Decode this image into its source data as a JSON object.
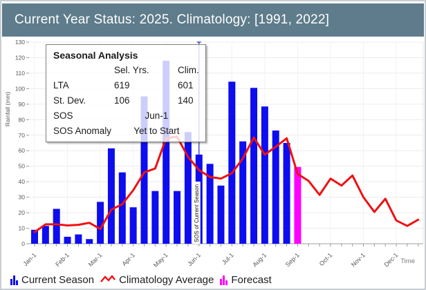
{
  "header": {
    "title": "Current Year Status: 2025. Climatology: [1991, 2022]"
  },
  "seasonal_analysis": {
    "title": "Seasonal Analysis",
    "col_sel": "Sel. Yrs.",
    "col_clim": "Clim.",
    "lta_label": "LTA",
    "lta_sel": "619",
    "lta_clim": "601",
    "stdev_label": "St. Dev.",
    "stdev_sel": "106",
    "stdev_clim": "140",
    "sos_label": "SOS",
    "sos_value": "Jun-1",
    "sos_anomaly_label": "SOS Anomaly",
    "sos_anomaly_value": "Yet to Start"
  },
  "legend": {
    "items": [
      {
        "icon": "blue-bars-icon",
        "label": "Current Season"
      },
      {
        "icon": "red-line-icon",
        "label": "Climatology Average"
      },
      {
        "icon": "magenta-bars-icon",
        "label": "Forecast"
      }
    ]
  },
  "colors": {
    "header_bg": "#5e7c8b",
    "current_season": "#0d0df0",
    "forecast": "#ff00ff",
    "climatology": "#ee1111",
    "axis_text": "#555555",
    "grid": "#ececf0",
    "baseline": "#9aa0a6",
    "sos_line": "#2323c8"
  },
  "chart_data": {
    "type": "bar+line",
    "ylabel": "Rainfall (mm)",
    "xlabel": "Time",
    "ylim": [
      0,
      130
    ],
    "y_tick_step": 10,
    "grid": true,
    "legend_position": "bottom",
    "categories": [
      "Jan-1",
      "Jan-11",
      "Jan-21",
      "Feb-1",
      "Feb-11",
      "Feb-21",
      "Mar-1",
      "Mar-11",
      "Mar-21",
      "Apr-1",
      "Apr-11",
      "Apr-21",
      "May-1",
      "May-11",
      "May-21",
      "Jun-1",
      "Jun-11",
      "Jun-21",
      "Jul-1",
      "Jul-11",
      "Jul-21",
      "Aug-1",
      "Aug-11",
      "Aug-21",
      "Sep-1",
      "Sep-11",
      "Sep-21",
      "Oct-1",
      "Oct-11",
      "Oct-21",
      "Nov-1",
      "Nov-11",
      "Nov-21",
      "Dec-1",
      "Dec-11",
      "Dec-21"
    ],
    "x_axis_labeled_ticks": [
      "Jan-1",
      "Feb-1",
      "Mar-1",
      "Apr-1",
      "May-1",
      "Jun-1",
      "Jul-1",
      "Aug-1",
      "Sep-1",
      "Oct-1",
      "Nov-1",
      "Dec-1"
    ],
    "series": [
      {
        "name": "Current Season",
        "type": "bar",
        "values": [
          9,
          11.5,
          22.5,
          4.5,
          6,
          3,
          27,
          61.5,
          46,
          23.5,
          95,
          34,
          118,
          34,
          72,
          57.5,
          51.5,
          37.5,
          104.5,
          66,
          100.5,
          88.5,
          73,
          65,
          null,
          null,
          null,
          null,
          null,
          null,
          null,
          null,
          null,
          null,
          null,
          null
        ]
      },
      {
        "name": "Forecast",
        "type": "bar",
        "values": [
          null,
          null,
          null,
          null,
          null,
          null,
          null,
          null,
          null,
          null,
          null,
          null,
          null,
          null,
          null,
          null,
          null,
          null,
          null,
          null,
          null,
          null,
          null,
          null,
          49.5,
          null,
          null,
          null,
          null,
          null,
          null,
          null,
          null,
          null,
          null,
          null
        ]
      },
      {
        "name": "Climatology Average",
        "type": "line",
        "values": [
          7.5,
          12.5,
          12.5,
          11.8,
          12.2,
          13.5,
          9.5,
          22,
          25.5,
          34.5,
          46,
          48.5,
          68,
          69,
          56,
          47.5,
          43,
          42,
          45.5,
          55,
          68.5,
          57.5,
          62.5,
          68,
          45,
          40.5,
          31.5,
          42,
          37.5,
          44,
          30,
          20.5,
          29,
          15,
          11.5,
          15.5
        ]
      }
    ],
    "annotations": {
      "sos_marker": {
        "category": "Jun-1",
        "label": "SOS of Current Season"
      }
    }
  }
}
